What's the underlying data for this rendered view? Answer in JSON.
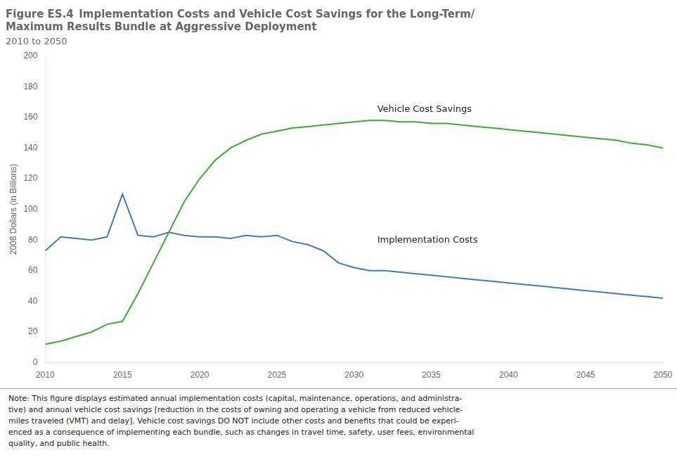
{
  "chart_data": {
    "type": "line",
    "title": [
      "Figure ES.4 Implementation Costs and Vehicle Cost Savings for the Long-Term/",
      "Maximum Results Bundle at Aggressive Deployment"
    ],
    "subtitle": "2010 to 2050",
    "ylabel": "2008 Dollars (in Billions)",
    "x": [
      2010,
      2011,
      2012,
      2013,
      2014,
      2015,
      2016,
      2017,
      2018,
      2019,
      2020,
      2021,
      2022,
      2023,
      2024,
      2025,
      2026,
      2027,
      2028,
      2029,
      2030,
      2031,
      2032,
      2033,
      2034,
      2035,
      2036,
      2037,
      2038,
      2039,
      2040,
      2041,
      2042,
      2043,
      2044,
      2045,
      2046,
      2047,
      2048,
      2049,
      2050
    ],
    "series": [
      {
        "name": "Vehicle Cost Savings",
        "color": "#3aaa35",
        "values": [
          12,
          14,
          17,
          20,
          25,
          27,
          45,
          65,
          85,
          105,
          120,
          132,
          140,
          145,
          149,
          151,
          153,
          154,
          155,
          156,
          157,
          158,
          158,
          157,
          157,
          156,
          156,
          155,
          154,
          153,
          152,
          151,
          150,
          149,
          148,
          147,
          146,
          145,
          143,
          142,
          140
        ]
      },
      {
        "name": "Implementation Costs",
        "color": "#4477bb",
        "values": [
          73,
          82,
          81,
          80,
          82,
          110,
          83,
          82,
          85,
          83,
          82,
          82,
          81,
          83,
          82,
          83,
          79,
          77,
          73,
          65,
          62,
          60,
          60,
          59,
          58,
          57,
          56,
          55,
          54,
          53,
          52,
          51,
          50,
          49,
          48,
          47,
          46,
          45,
          44,
          43,
          42
        ]
      }
    ],
    "xlim": [
      2010,
      2050
    ],
    "xticks": [
      2010,
      2015,
      2020,
      2025,
      2030,
      2035,
      2040,
      2045,
      2050
    ],
    "ylim": [
      0,
      200
    ],
    "yticks": [
      0,
      20,
      40,
      60,
      80,
      100,
      120,
      140,
      160,
      180,
      200
    ],
    "grid": false,
    "annotations": [
      {
        "text": "Vehicle Cost Savings",
        "x": 2031.5,
        "y": 162
      },
      {
        "text": "Implementation Costs",
        "x": 2031.5,
        "y": 77
      }
    ],
    "note": [
      "Note: This figure displays estimated annual implementation costs (capital, maintenance, operations, and administra-",
      "tive) and annual vehicle cost savings [reduction in the costs of owning and operating a vehicle from reduced vehicle-",
      "miles traveled (VMT) and delay]. Vehicle cost savings DO NOT include other costs and benefits that could be experi-",
      "enced as a consequence of implementing each bundle, such as changes in travel time, safety, user fees, environmental",
      "quality, and public health."
    ]
  }
}
